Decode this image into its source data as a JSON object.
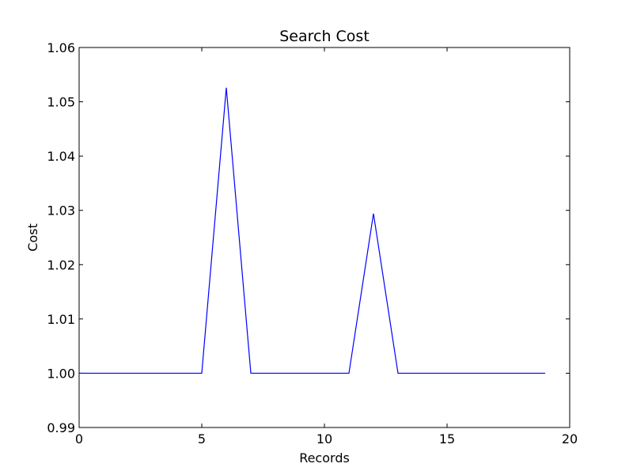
{
  "chart_data": {
    "type": "line",
    "title": "Search Cost",
    "xlabel": "Records",
    "ylabel": "Cost",
    "xlim": [
      0,
      20
    ],
    "ylim": [
      0.99,
      1.06
    ],
    "xticks": [
      0,
      5,
      10,
      15,
      20
    ],
    "xtick_labels": [
      "0",
      "5",
      "10",
      "15",
      "20"
    ],
    "yticks": [
      0.99,
      1.0,
      1.01,
      1.02,
      1.03,
      1.04,
      1.05,
      1.06
    ],
    "ytick_labels": [
      "0.99",
      "1.00",
      "1.01",
      "1.02",
      "1.03",
      "1.04",
      "1.05",
      "1.06"
    ],
    "grid": false,
    "series": [
      {
        "color": "#0000ff",
        "x": [
          0,
          1,
          2,
          3,
          4,
          5,
          6,
          7,
          8,
          9,
          10,
          11,
          12,
          13,
          14,
          15,
          16,
          17,
          18,
          19
        ],
        "y": [
          1.0,
          1.0,
          1.0,
          1.0,
          1.0,
          1.0,
          1.0526,
          1.0,
          1.0,
          1.0,
          1.0,
          1.0,
          1.0294,
          1.0,
          1.0,
          1.0,
          1.0,
          1.0,
          1.0,
          1.0
        ]
      }
    ]
  }
}
